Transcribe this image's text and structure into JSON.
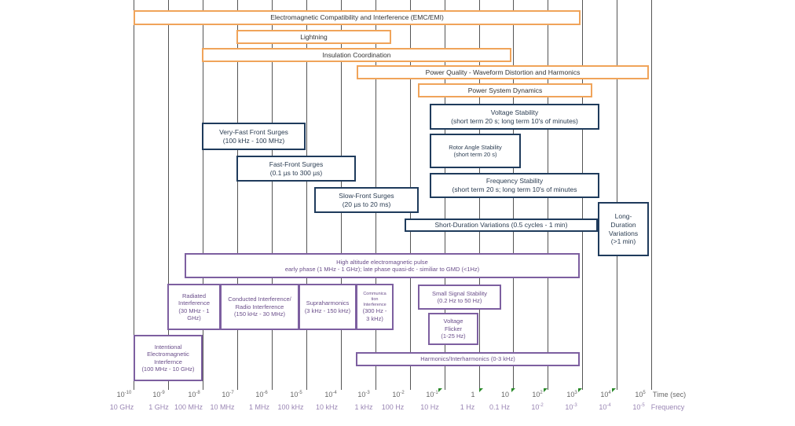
{
  "colors": {
    "orange": "#f0a45a",
    "navy": "#1f3b5c",
    "purple": "#7d5fa0",
    "marker": "#2a8a2a"
  },
  "orange_boxes": {
    "emc": "Electromagnetic Compatibility and Interference (EMC/EMI)",
    "lightning": "Lightning",
    "insulation": "Insulation Coordination",
    "power_quality": "Power Quality - Waveform Distortion and Harmonics",
    "dynamics": "Power System Dynamics"
  },
  "blue_boxes": {
    "voltage_stability": [
      "Voltage Stability",
      "(short term 20 s; long term 10's of minutes)"
    ],
    "very_fast": [
      "Very-Fast Front Surges",
      "(100 kHz - 100 MHz)"
    ],
    "rotor": [
      "Rotor Angle Stability",
      "(short term 20 s)"
    ],
    "fast_front": [
      "Fast-Front Surges",
      "(0.1 µs to 300 µs)"
    ],
    "frequency_stability": [
      "Frequency Stability",
      "(short term 20 s; long term 10's of minutes"
    ],
    "slow_front": [
      "Slow-Front Surges",
      "(20 µs to 20 ms)"
    ],
    "short_duration": "Short-Duration Variations (0.5 cycles - 1 min)",
    "long_duration": [
      "Long-",
      "Duration",
      "Variations",
      "(>1 min)"
    ]
  },
  "purple_boxes": {
    "hemp": [
      "High altitude electromagnetic pulse",
      "early phase (1 MHz - 1 GHz); late phase quasi-dc - similiar to GMD (<1Hz)"
    ],
    "radiated": [
      "Radiated",
      "Interference",
      "(30 MHz - 1",
      "GHz)"
    ],
    "conducted": [
      "Conducted Interference/",
      "Radio Interference",
      "(150 kHz - 30 MHz)"
    ],
    "supra": [
      "Supraharmonics",
      "(3 kHz - 150 kHz)"
    ],
    "communication": [
      "Communica",
      "tion",
      "Interference",
      "(300 Hz -",
      "3 kHz)"
    ],
    "small_signal": [
      "Small Signal Stability",
      "(0.2 Hz to 50 Hz)"
    ],
    "flicker": [
      "Voltage",
      "Flicker",
      "(1-25 Hz)"
    ],
    "intentional": [
      "Intentional",
      "Electromagnetic",
      "Interfernce",
      "(100 MHz - 10 GHz)"
    ],
    "harmonics": "Harmonics/Interharmonics (0-3 kHz)"
  },
  "time_axis": {
    "label": "Time (sec)",
    "ticks": [
      {
        "b": "10",
        "e": "-10"
      },
      {
        "b": "10",
        "e": "-9"
      },
      {
        "b": "10",
        "e": "-8"
      },
      {
        "b": "10",
        "e": "-7"
      },
      {
        "b": "10",
        "e": "-6"
      },
      {
        "b": "10",
        "e": "-5"
      },
      {
        "b": "10",
        "e": "-4"
      },
      {
        "b": "10",
        "e": "-3"
      },
      {
        "b": "10",
        "e": "-2"
      },
      {
        "b": "10",
        "e": "-1"
      },
      {
        "b": "1",
        "e": ""
      },
      {
        "b": "10",
        "e": ""
      },
      {
        "b": "10",
        "e": "2"
      },
      {
        "b": "10",
        "e": "3"
      },
      {
        "b": "10",
        "e": "4"
      },
      {
        "b": "10",
        "e": "5"
      }
    ]
  },
  "freq_axis": {
    "label": "Frequency",
    "ticks": [
      {
        "b": "10 GHz",
        "e": ""
      },
      {
        "b": "1 GHz",
        "e": ""
      },
      {
        "b": "100 MHz",
        "e": ""
      },
      {
        "b": "10 MHz",
        "e": ""
      },
      {
        "b": "1 MHz",
        "e": ""
      },
      {
        "b": "100 kHz",
        "e": ""
      },
      {
        "b": "10 kHz",
        "e": ""
      },
      {
        "b": "1 kHz",
        "e": ""
      },
      {
        "b": "100 Hz",
        "e": ""
      },
      {
        "b": "10 Hz",
        "e": ""
      },
      {
        "b": "1 Hz",
        "e": ""
      },
      {
        "b": "0.1 Hz",
        "e": ""
      },
      {
        "b": "10",
        "e": "-2"
      },
      {
        "b": "10",
        "e": "-3"
      },
      {
        "b": "10",
        "e": "-4"
      },
      {
        "b": "10",
        "e": "-5"
      }
    ]
  }
}
